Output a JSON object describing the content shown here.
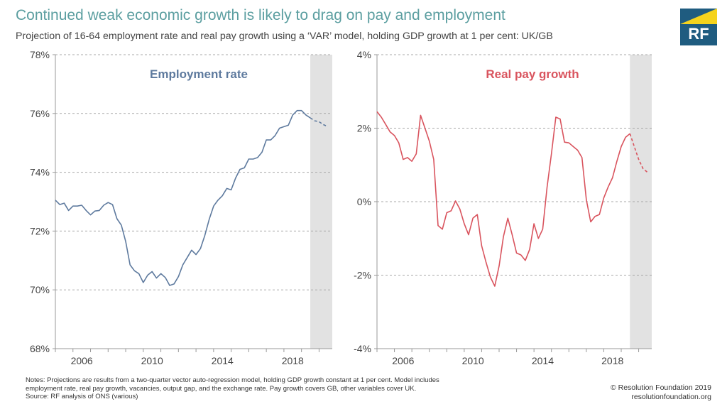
{
  "header": {
    "title": "Continued weak economic growth is likely to drag on pay and employment",
    "subtitle": "Projection of 16-64 employment rate and real pay growth using a ‘VAR’ model, holding GDP growth at 1 per cent: UK/GB"
  },
  "logo": {
    "text": "RF",
    "brand_color": "#1f5c80",
    "accent_color": "#f5d31d"
  },
  "footer": {
    "notes_line1": "Notes: Projections are results from a two-quarter vector auto-regression model, holding GDP growth constant at 1 per cent. Model includes",
    "notes_line2": "employment rate, real pay growth, vacancies, output gap, and the exchange rate. Pay growth covers GB, other variables cover UK.",
    "source": "Source: RF analysis of ONS (various)",
    "copyright": "© Resolution Foundation 2019",
    "website": "resolutionfoundation.org"
  },
  "chart_data": [
    {
      "type": "line",
      "title": "Employment rate",
      "title_color": "#5e7a9e",
      "line_color": "#5e7a9e",
      "ylim": [
        68,
        78
      ],
      "yticks": [
        "68%",
        "70%",
        "72%",
        "74%",
        "76%",
        "78%"
      ],
      "ytick_values": [
        68,
        70,
        72,
        74,
        76,
        78
      ],
      "xlim": [
        2005,
        2020.75
      ],
      "xticks": [
        "2006",
        "2010",
        "2014",
        "2018"
      ],
      "xtick_values": [
        2006.5,
        2010.5,
        2014.5,
        2018.5
      ],
      "projection_shade": [
        2019.5,
        2020.75
      ],
      "series": [
        {
          "name": "Actual",
          "x": [
            2005.0,
            2005.25,
            2005.5,
            2005.75,
            2006.0,
            2006.25,
            2006.5,
            2006.75,
            2007.0,
            2007.25,
            2007.5,
            2007.75,
            2008.0,
            2008.25,
            2008.5,
            2008.75,
            2009.0,
            2009.25,
            2009.5,
            2009.75,
            2010.0,
            2010.25,
            2010.5,
            2010.75,
            2011.0,
            2011.25,
            2011.5,
            2011.75,
            2012.0,
            2012.25,
            2012.5,
            2012.75,
            2013.0,
            2013.25,
            2013.5,
            2013.75,
            2014.0,
            2014.25,
            2014.5,
            2014.75,
            2015.0,
            2015.25,
            2015.5,
            2015.75,
            2016.0,
            2016.25,
            2016.5,
            2016.75,
            2017.0,
            2017.25,
            2017.5,
            2017.75,
            2018.0,
            2018.25,
            2018.5,
            2018.75,
            2019.0,
            2019.25,
            2019.5
          ],
          "values": [
            73.05,
            72.9,
            72.95,
            72.7,
            72.85,
            72.85,
            72.88,
            72.7,
            72.55,
            72.68,
            72.7,
            72.88,
            72.97,
            72.9,
            72.42,
            72.2,
            71.65,
            70.85,
            70.65,
            70.55,
            70.25,
            70.5,
            70.62,
            70.4,
            70.55,
            70.42,
            70.15,
            70.2,
            70.45,
            70.85,
            71.1,
            71.35,
            71.2,
            71.4,
            71.85,
            72.4,
            72.85,
            73.05,
            73.2,
            73.45,
            73.4,
            73.8,
            74.1,
            74.15,
            74.45,
            74.45,
            74.5,
            74.68,
            75.1,
            75.1,
            75.25,
            75.5,
            75.55,
            75.6,
            75.95,
            76.1,
            76.1,
            75.95,
            75.85
          ]
        },
        {
          "name": "Projection",
          "x": [
            2019.5,
            2019.75,
            2020.0,
            2020.25,
            2020.5
          ],
          "values": [
            75.85,
            75.75,
            75.72,
            75.62,
            75.55
          ],
          "dashed": true
        }
      ]
    },
    {
      "type": "line",
      "title": "Real pay growth",
      "title_color": "#d9545e",
      "line_color": "#d9545e",
      "ylim": [
        -4,
        4
      ],
      "yticks": [
        "-4%",
        "-2%",
        "0%",
        "2%",
        "4%"
      ],
      "ytick_values": [
        -4,
        -2,
        0,
        2,
        4
      ],
      "xlim": [
        2005,
        2020.75
      ],
      "xticks": [
        "2006",
        "2010",
        "2014",
        "2018"
      ],
      "xtick_values": [
        2006.5,
        2010.5,
        2014.5,
        2018.5
      ],
      "projection_shade": [
        2019.5,
        2020.75
      ],
      "series": [
        {
          "name": "Actual",
          "x": [
            2005.0,
            2005.25,
            2005.5,
            2005.75,
            2006.0,
            2006.25,
            2006.5,
            2006.75,
            2007.0,
            2007.25,
            2007.5,
            2007.75,
            2008.0,
            2008.25,
            2008.5,
            2008.75,
            2009.0,
            2009.25,
            2009.5,
            2009.75,
            2010.0,
            2010.25,
            2010.5,
            2010.75,
            2011.0,
            2011.25,
            2011.5,
            2011.75,
            2012.0,
            2012.25,
            2012.5,
            2012.75,
            2013.0,
            2013.25,
            2013.5,
            2013.75,
            2014.0,
            2014.25,
            2014.5,
            2014.75,
            2015.0,
            2015.25,
            2015.5,
            2015.75,
            2016.0,
            2016.25,
            2016.5,
            2016.75,
            2017.0,
            2017.25,
            2017.5,
            2017.75,
            2018.0,
            2018.25,
            2018.5,
            2018.75,
            2019.0,
            2019.25,
            2019.5
          ],
          "values": [
            2.45,
            2.3,
            2.1,
            1.9,
            1.8,
            1.6,
            1.15,
            1.2,
            1.1,
            1.3,
            2.35,
            2.0,
            1.65,
            1.15,
            -0.65,
            -0.75,
            -0.3,
            -0.25,
            0.02,
            -0.2,
            -0.6,
            -0.9,
            -0.45,
            -0.35,
            -1.2,
            -1.65,
            -2.05,
            -2.3,
            -1.75,
            -0.95,
            -0.45,
            -0.9,
            -1.4,
            -1.45,
            -1.6,
            -1.3,
            -0.6,
            -1.0,
            -0.75,
            0.4,
            1.3,
            2.3,
            2.25,
            1.62,
            1.6,
            1.5,
            1.4,
            1.2,
            0.05,
            -0.55,
            -0.4,
            -0.35,
            0.1,
            0.4,
            0.65,
            1.1,
            1.5,
            1.75,
            1.85
          ]
        },
        {
          "name": "Projection",
          "x": [
            2019.5,
            2019.75,
            2020.0,
            2020.25,
            2020.5
          ],
          "values": [
            1.85,
            1.5,
            1.15,
            0.9,
            0.8
          ],
          "dashed": true
        }
      ]
    }
  ]
}
